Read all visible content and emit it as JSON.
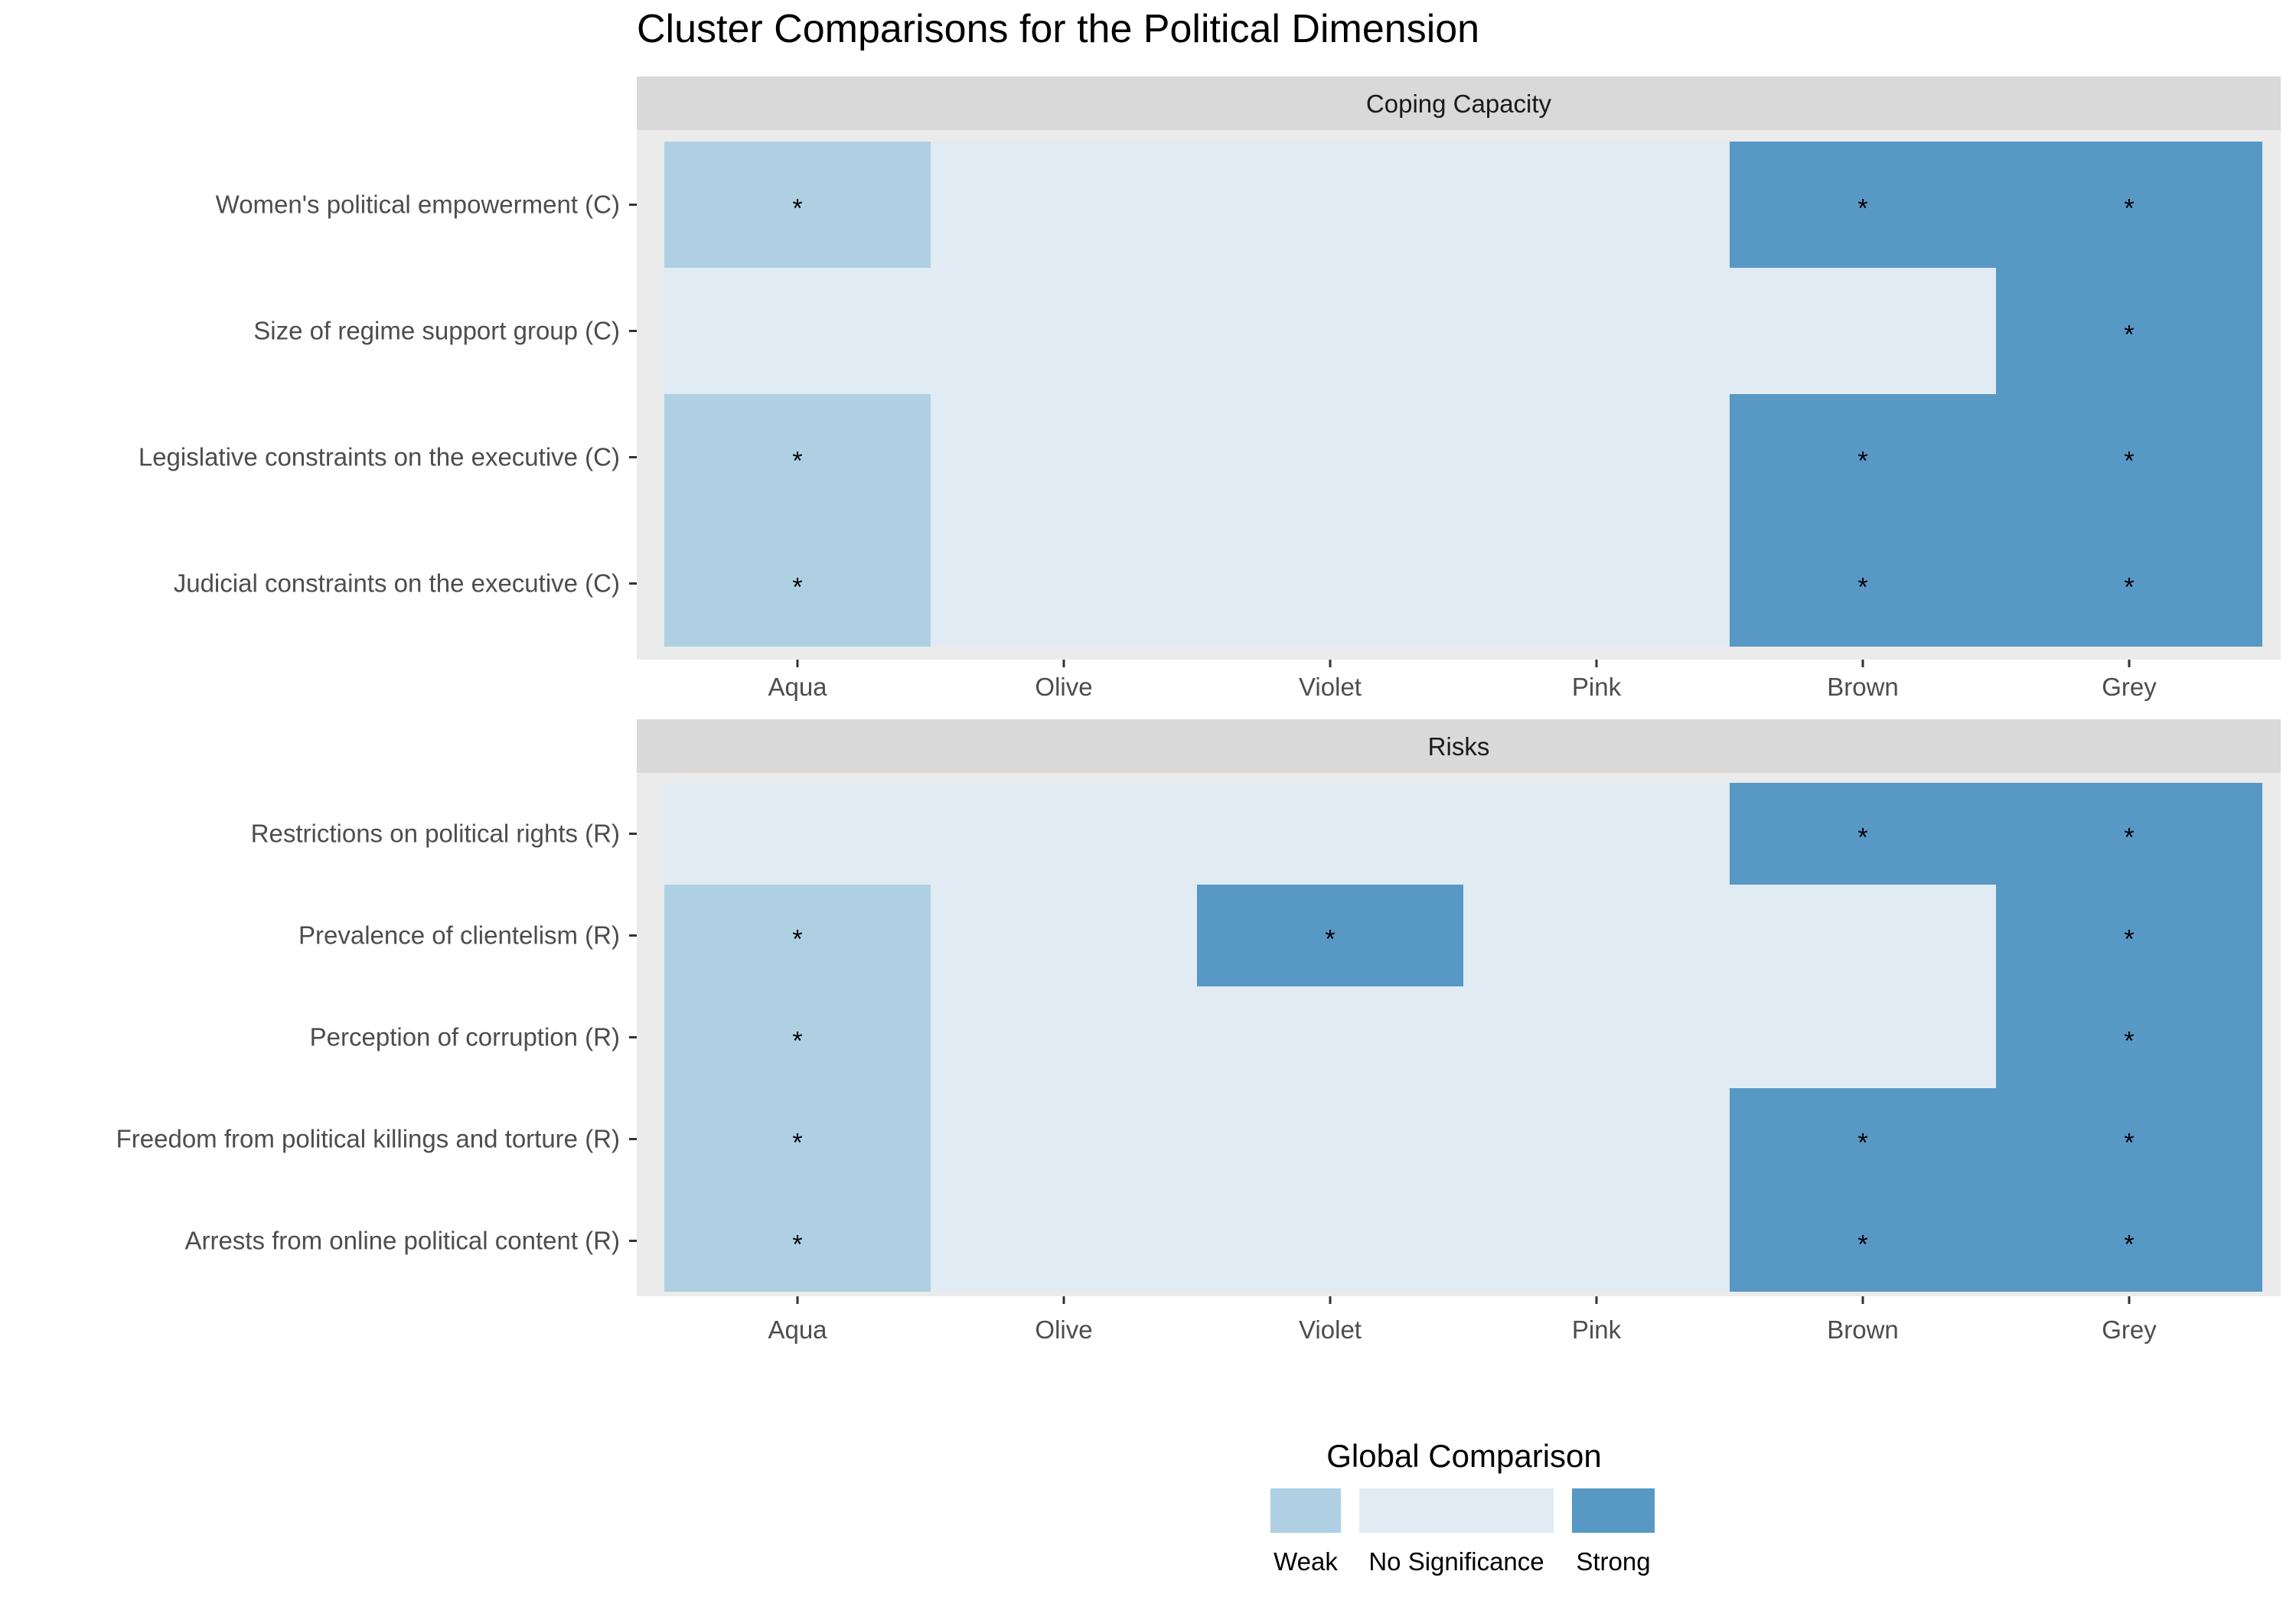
{
  "colors": {
    "weak": "#aed0e2",
    "no_significance": "#e1ebf4",
    "strong": "#5898c5",
    "panel_bg": "#ebebeb",
    "strip_bg": "#d9d9d9"
  },
  "chart_data": {
    "type": "heatmap",
    "title": "Cluster Comparisons for the Political Dimension",
    "categories": [
      "Aqua",
      "Olive",
      "Violet",
      "Pink",
      "Brown",
      "Grey"
    ],
    "legend": {
      "title": "Global Comparison",
      "placement": "bottom",
      "entries": [
        {
          "key": "weak",
          "label": "Weak"
        },
        {
          "key": "no_significance",
          "label": "No Significance"
        },
        {
          "key": "strong",
          "label": "Strong"
        }
      ]
    },
    "panels": [
      {
        "name": "Coping Capacity",
        "rows": [
          {
            "label": "Women's political empowerment (C)",
            "values": [
              "weak",
              "no_significance",
              "no_significance",
              "no_significance",
              "strong",
              "strong"
            ],
            "stars": [
              true,
              false,
              false,
              false,
              true,
              true
            ]
          },
          {
            "label": "Size of regime support group (C)",
            "values": [
              "no_significance",
              "no_significance",
              "no_significance",
              "no_significance",
              "no_significance",
              "strong"
            ],
            "stars": [
              false,
              false,
              false,
              false,
              false,
              true
            ]
          },
          {
            "label": "Legislative constraints on the executive (C)",
            "values": [
              "weak",
              "no_significance",
              "no_significance",
              "no_significance",
              "strong",
              "strong"
            ],
            "stars": [
              true,
              false,
              false,
              false,
              true,
              true
            ]
          },
          {
            "label": "Judicial constraints on the executive (C)",
            "values": [
              "weak",
              "no_significance",
              "no_significance",
              "no_significance",
              "strong",
              "strong"
            ],
            "stars": [
              true,
              false,
              false,
              false,
              true,
              true
            ]
          }
        ]
      },
      {
        "name": "Risks",
        "rows": [
          {
            "label": "Restrictions on political rights (R)",
            "values": [
              "no_significance",
              "no_significance",
              "no_significance",
              "no_significance",
              "strong",
              "strong"
            ],
            "stars": [
              false,
              false,
              false,
              false,
              true,
              true
            ]
          },
          {
            "label": "Prevalence of clientelism (R)",
            "values": [
              "weak",
              "no_significance",
              "strong",
              "no_significance",
              "no_significance",
              "strong"
            ],
            "stars": [
              true,
              false,
              true,
              false,
              false,
              true
            ]
          },
          {
            "label": "Perception of corruption (R)",
            "values": [
              "weak",
              "no_significance",
              "no_significance",
              "no_significance",
              "no_significance",
              "strong"
            ],
            "stars": [
              true,
              false,
              false,
              false,
              false,
              true
            ]
          },
          {
            "label": "Freedom from political killings and torture (R)",
            "values": [
              "weak",
              "no_significance",
              "no_significance",
              "no_significance",
              "strong",
              "strong"
            ],
            "stars": [
              true,
              false,
              false,
              false,
              true,
              true
            ]
          },
          {
            "label": "Arrests from online political content (R)",
            "values": [
              "weak",
              "no_significance",
              "no_significance",
              "no_significance",
              "strong",
              "strong"
            ],
            "stars": [
              true,
              false,
              false,
              false,
              true,
              true
            ]
          }
        ]
      }
    ],
    "star_symbol": "*"
  }
}
